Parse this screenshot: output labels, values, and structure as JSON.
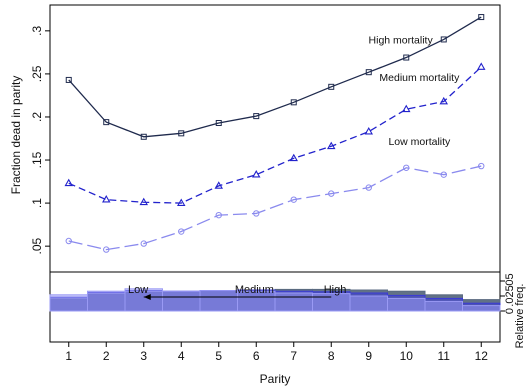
{
  "chart_data": {
    "type": "line",
    "xlabel": "Parity",
    "ylabel": "Fraction dead in parity",
    "x": [
      1,
      2,
      3,
      4,
      5,
      6,
      7,
      8,
      9,
      10,
      11,
      12
    ],
    "xlim": [
      0.5,
      12.5
    ],
    "ylim": [
      0.02,
      0.33
    ],
    "yticks": [
      0.05,
      0.1,
      0.15,
      0.2,
      0.25,
      0.3
    ],
    "ytick_labels": [
      ".05",
      ".1",
      ".15",
      ".2",
      ".25",
      ".3"
    ],
    "grid": false,
    "series": [
      {
        "name": "High mortality",
        "color": "#1f2a4d",
        "dash": "solid",
        "marker": "square",
        "values": [
          0.243,
          0.194,
          0.177,
          0.181,
          0.193,
          0.201,
          0.217,
          0.235,
          0.252,
          0.269,
          0.29,
          0.316
        ]
      },
      {
        "name": "Medium mortality",
        "color": "#2222cc",
        "dash": "dashed",
        "marker": "triangle",
        "values": [
          0.123,
          0.104,
          0.101,
          0.1,
          0.12,
          0.133,
          0.152,
          0.166,
          0.183,
          0.209,
          0.218,
          0.258
        ]
      },
      {
        "name": "Low mortality",
        "color": "#8a8aee",
        "dash": "longdash",
        "marker": "circle",
        "values": [
          0.056,
          0.046,
          0.053,
          0.067,
          0.086,
          0.088,
          0.104,
          0.111,
          0.118,
          0.141,
          0.133,
          0.143
        ]
      }
    ],
    "histogram": {
      "ylabel": "Relative freq.",
      "ylim": [
        0,
        0.065
      ],
      "yticks": [
        0,
        0.025,
        0.05
      ],
      "ytick_labels": [
        "0",
        ".025",
        ".05"
      ],
      "arrow_labels": [
        "Low",
        "Medium",
        "High"
      ],
      "series": [
        {
          "name": "High",
          "color": "#5a6a80",
          "values": [
            0.02,
            0.028,
            0.031,
            0.032,
            0.033,
            0.034,
            0.036,
            0.036,
            0.035,
            0.033,
            0.027,
            0.019
          ]
        },
        {
          "name": "Medium",
          "color": "#3a3ad8",
          "values": [
            0.023,
            0.031,
            0.034,
            0.033,
            0.034,
            0.035,
            0.033,
            0.032,
            0.03,
            0.026,
            0.021,
            0.013
          ]
        },
        {
          "name": "Low",
          "color": "#9a9af4",
          "values": [
            0.027,
            0.033,
            0.037,
            0.033,
            0.034,
            0.033,
            0.03,
            0.029,
            0.025,
            0.021,
            0.016,
            0.009
          ]
        }
      ]
    }
  }
}
